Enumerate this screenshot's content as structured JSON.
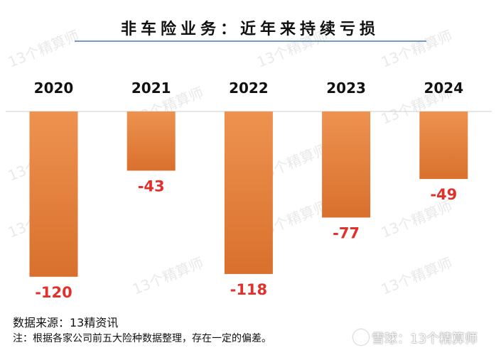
{
  "chart_data": {
    "type": "bar",
    "title": "非车险业务：近年来持续亏损",
    "categories": [
      "2020",
      "2021",
      "2022",
      "2023",
      "2024"
    ],
    "values": [
      -120,
      -43,
      -118,
      -77,
      -49
    ],
    "value_labels": [
      "-120",
      "-43",
      "-118",
      "-77",
      "-49"
    ],
    "ylim": [
      -130,
      0
    ],
    "grid": false,
    "legend": "none",
    "bar_color": "#e8833f",
    "label_color": "#e0312b"
  },
  "footer": {
    "source": "数据来源：13精资讯",
    "note": "注：根据各家公司前五大险种数据整理，存在一定的偏差。"
  },
  "watermark": "13个精算师",
  "badge": {
    "logo_icon": "snowball-logo-icon",
    "text": "雪球：13个精算师"
  }
}
